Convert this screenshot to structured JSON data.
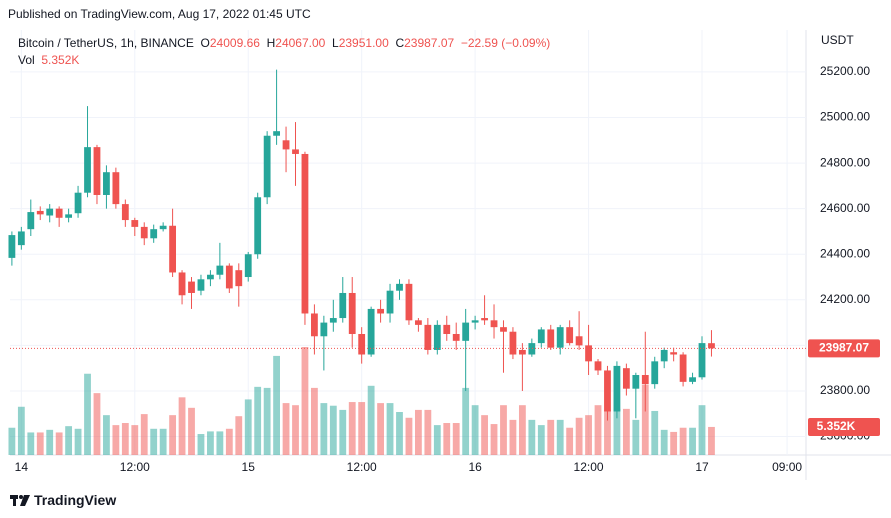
{
  "published": "Published on TradingView.com, Aug 17, 2022 01:45 UTC",
  "brand": "TradingView",
  "chart_data": {
    "type": "candlestick",
    "symbol": "Bitcoin / TetherUS, 1h, BINANCE",
    "currency": "USDT",
    "legend": {
      "o": "O",
      "h": "H",
      "l": "L",
      "c": "C",
      "open": "24009.66",
      "high": "24067.00",
      "low": "23951.00",
      "close": "23987.07",
      "change": "−22.59 (−0.09%)",
      "vol": "Vol",
      "volume": "5.352K"
    },
    "up_color": "#26a69a",
    "down_color": "#ef5350",
    "open": [
      24384,
      24440,
      24510,
      24590,
      24570,
      24600,
      24560,
      24580,
      24670,
      24870,
      24660,
      24760,
      24620,
      24550,
      24520,
      24470,
      24510,
      24525,
      24320,
      24280,
      24240,
      24290,
      24310,
      24350,
      24330,
      24300,
      24400,
      24650,
      24920,
      24900,
      24860,
      24840,
      24140,
      24040,
      24100,
      24120,
      24230,
      24050,
      23960,
      24160,
      24140,
      24240,
      24270,
      24110,
      24090,
      23980,
      24090,
      24050,
      24020,
      24100,
      24120,
      24110,
      24080,
      24060,
      23980,
      23960,
      24010,
      24070,
      23990,
      24080,
      24040,
      24000,
      23930,
      23890,
      23710,
      23900,
      23810,
      23870,
      23830,
      23930,
      23970,
      23960,
      23840,
      23860,
      24009.66
    ],
    "high": [
      24500,
      24520,
      24640,
      24610,
      24620,
      24610,
      24600,
      24700,
      25050,
      24880,
      24790,
      24780,
      24640,
      24560,
      24540,
      24530,
      24540,
      24600,
      24330,
      24300,
      24310,
      24330,
      24450,
      24360,
      24360,
      24410,
      24670,
      24940,
      25210,
      24960,
      24980,
      24850,
      24180,
      24130,
      24200,
      24300,
      24300,
      24080,
      24170,
      24200,
      24270,
      24290,
      24290,
      24120,
      24120,
      24110,
      24130,
      24100,
      24160,
      24130,
      24220,
      24180,
      24110,
      24080,
      24010,
      24030,
      24080,
      24090,
      24090,
      24110,
      24150,
      24090,
      23940,
      23910,
      23930,
      23920,
      23880,
      24060,
      23950,
      23990,
      23990,
      23970,
      23880,
      24040,
      24067
    ],
    "low": [
      24350,
      24420,
      24480,
      24550,
      24540,
      24520,
      24540,
      24560,
      24650,
      24620,
      24600,
      24600,
      24520,
      24480,
      24440,
      24450,
      24500,
      24300,
      24180,
      24160,
      24220,
      24260,
      24290,
      24230,
      24170,
      24280,
      24380,
      24620,
      24880,
      24760,
      24700,
      24090,
      23960,
      23890,
      24060,
      24100,
      23990,
      23920,
      23950,
      24100,
      24100,
      24200,
      24090,
      24060,
      23960,
      23960,
      24020,
      23980,
      23800,
      24070,
      24090,
      24030,
      23880,
      23940,
      23800,
      23950,
      23990,
      23980,
      23960,
      24000,
      23980,
      23870,
      23870,
      23670,
      23680,
      23780,
      23680,
      23710,
      23810,
      23900,
      23930,
      23820,
      23830,
      23850,
      23951
    ],
    "close": [
      24484,
      24500,
      24585,
      24575,
      24600,
      24560,
      24575,
      24670,
      24870,
      24660,
      24760,
      24620,
      24550,
      24520,
      24470,
      24510,
      24525,
      24320,
      24220,
      24230,
      24290,
      24310,
      24350,
      24250,
      24260,
      24400,
      24650,
      24920,
      24940,
      24860,
      24840,
      24140,
      24040,
      24100,
      24120,
      24230,
      24050,
      23960,
      24160,
      24140,
      24240,
      24270,
      24110,
      24090,
      23980,
      24090,
      24050,
      24020,
      24100,
      24110,
      24110,
      24080,
      24060,
      23960,
      23960,
      24010,
      24070,
      23990,
      24080,
      24010,
      24000,
      23930,
      23890,
      23710,
      23910,
      23810,
      23870,
      23830,
      23930,
      23980,
      23960,
      23840,
      23860,
      24010,
      23987.07
    ],
    "volume": [
      5.2,
      9.2,
      4.3,
      4.3,
      4.8,
      4.3,
      5.5,
      5.0,
      15.5,
      11.8,
      7.6,
      5.7,
      6.1,
      5.7,
      7.8,
      5.0,
      5.0,
      7.6,
      11.0,
      9.0,
      4.0,
      4.5,
      4.5,
      5.0,
      7.4,
      10.6,
      13.0,
      12.8,
      18.9,
      9.9,
      9.5,
      20.6,
      12.8,
      9.9,
      9.4,
      8.6,
      10.1,
      10.1,
      13.2,
      9.9,
      9.9,
      8.2,
      7.1,
      8.6,
      8.6,
      5.7,
      6.1,
      6.1,
      12.8,
      9.5,
      7.6,
      5.9,
      9.5,
      6.7,
      9.5,
      6.7,
      5.7,
      6.7,
      6.7,
      5.2,
      7.1,
      7.6,
      9.5,
      8.6,
      8.8,
      8.8,
      6.7,
      13.4,
      8.4,
      4.8,
      4.4,
      5.2,
      5.2,
      9.5,
      5.352
    ],
    "xlim": [
      -0.2,
      84
    ],
    "xticks": [
      {
        "value": 1,
        "label": "14"
      },
      {
        "value": 13,
        "label": "12:00"
      },
      {
        "value": 25,
        "label": "15"
      },
      {
        "value": 37,
        "label": "12:00"
      },
      {
        "value": 49,
        "label": "16"
      },
      {
        "value": 61,
        "label": "12:00"
      },
      {
        "value": 73,
        "label": "17"
      },
      {
        "value": 82,
        "label": "09:00"
      }
    ],
    "ylim": [
      23519,
      25384
    ],
    "yticks": [
      {
        "value": 23600,
        "label": "23600.00"
      },
      {
        "value": 23800,
        "label": "23800.00"
      },
      {
        "value": 24000,
        "label": "24000.00"
      },
      {
        "value": 24200,
        "label": "24200.00"
      },
      {
        "value": 24400,
        "label": "24400.00"
      },
      {
        "value": 24600,
        "label": "24600.00"
      },
      {
        "value": 24800,
        "label": "24800.00"
      },
      {
        "value": 25000,
        "label": "25000.00"
      },
      {
        "value": 25200,
        "label": "25200.00"
      }
    ],
    "grid": true
  }
}
